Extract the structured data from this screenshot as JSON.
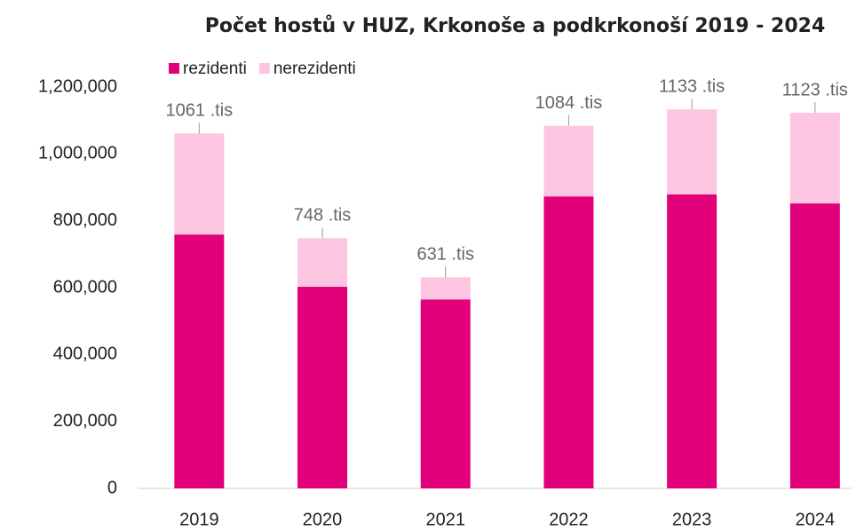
{
  "chart_data": {
    "type": "stacked_bar",
    "title": "Počet hostů v HUZ, Krkonoše a podkrkonoší 2019 - 2024",
    "categories": [
      "2019",
      "2020",
      "2021",
      "2022",
      "2023",
      "2024"
    ],
    "series": [
      {
        "name": "rezidenti",
        "color": "#e2007a",
        "values": [
          759000,
          603000,
          565000,
          873000,
          879000,
          852000
        ]
      },
      {
        "name": "nerezidenti",
        "color": "#fcc5e0",
        "values": [
          302000,
          145000,
          66000,
          211000,
          254000,
          271000
        ]
      }
    ],
    "totals": [
      1061000,
      748000,
      631000,
      1084000,
      1133000,
      1123000
    ],
    "total_labels": [
      "1061 .tis",
      "748 .tis",
      "631 .tis",
      "1084 .tis",
      "1133 .tis",
      "1123 .tis"
    ],
    "ylim": [
      0,
      1200000
    ],
    "yticks": [
      0,
      {
        "value": 200000,
        "label": "200,000"
      },
      {
        "value": 400000,
        "label": "400,000"
      },
      {
        "value": 600000,
        "label": "600,000"
      },
      {
        "value": 800000,
        "label": "800,000"
      },
      {
        "value": 1000000,
        "label": "1,000,000"
      },
      {
        "value": 1200000,
        "label": "1,200,000"
      }
    ],
    "legend": "top-left",
    "grid": false
  }
}
